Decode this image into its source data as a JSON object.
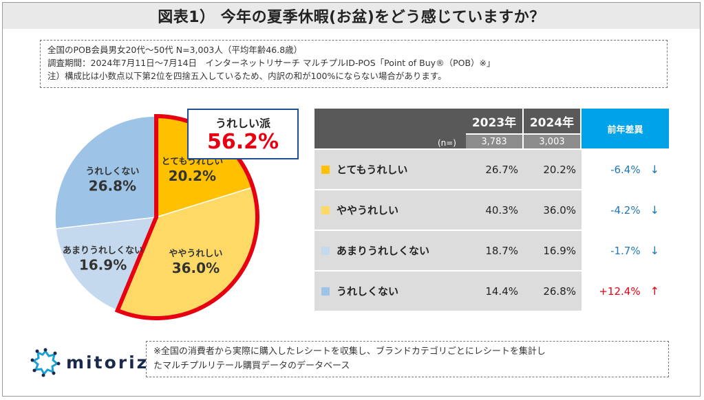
{
  "title": "図表1） 今年の夏季休暇(お盆)をどう感じていますか？",
  "info": {
    "line1": "全国のPOB会員男女20代〜50代 N=3,003人（平均年齢46.8歳）",
    "line2": "調査期間：2024年7月11日〜7月14日　インターネットリサーチ マルチプルID-POS「Point of Buy®（POB）※」",
    "line3": "注）構成比は小数点以下第2位を四捨五入しているため、内訳の和が100%にならない場合があります。"
  },
  "callout": {
    "label": "うれしい派",
    "value": "56.2%"
  },
  "chart_data": {
    "type": "pie",
    "slices": [
      {
        "label": "とてもうれしい",
        "value": 20.2,
        "value_label": "20.2%",
        "color": "#ffc000",
        "text_color": "#333333"
      },
      {
        "label": "ややうれしい",
        "value": 36.0,
        "value_label": "36.0%",
        "color": "#ffd966",
        "text_color": "#333333"
      },
      {
        "label": "あまりうれしくない",
        "value": 16.9,
        "value_label": "16.9%",
        "color": "#c5d9ee",
        "text_color": "#333333"
      },
      {
        "label": "うれしくない",
        "value": 26.8,
        "value_label": "26.8%",
        "color": "#9dc3e6",
        "text_color": "#333333"
      }
    ],
    "highlight_color": "#e60012"
  },
  "table": {
    "year_2023": "2023年",
    "year_2024": "2024年",
    "diff_header": "前年差異",
    "n_label": "(n=)",
    "n_2023": "3,783",
    "n_2024": "3,003",
    "rows": [
      {
        "label": "とてもうれしい",
        "color": "#ffc000",
        "v2023": "26.7%",
        "v2024": "20.2%",
        "diff": "-6.4%",
        "arrow": "↓",
        "diff_color": "#1f77b4"
      },
      {
        "label": "ややうれしい",
        "color": "#ffd966",
        "v2023": "40.3%",
        "v2024": "36.0%",
        "diff": "-4.2%",
        "arrow": "↓",
        "diff_color": "#1f77b4"
      },
      {
        "label": "あまりうれしくない",
        "color": "#c5d9ee",
        "v2023": "18.7%",
        "v2024": "16.9%",
        "diff": "-1.7%",
        "arrow": "↓",
        "diff_color": "#1f77b4"
      },
      {
        "label": "うれしくない",
        "color": "#9dc3e6",
        "v2023": "14.4%",
        "v2024": "26.8%",
        "diff": "+12.4%",
        "arrow": "↑",
        "diff_color": "#e60012"
      }
    ]
  },
  "logo": {
    "text": "mitoriz",
    "color": "#1a9fd6"
  },
  "footnote": {
    "line1": "※全国の消費者から実際に購入したレシートを収集し、ブランドカテゴリごとにレシートを集計し",
    "line2": "たマルチプルリテール購買データのデータベース"
  }
}
